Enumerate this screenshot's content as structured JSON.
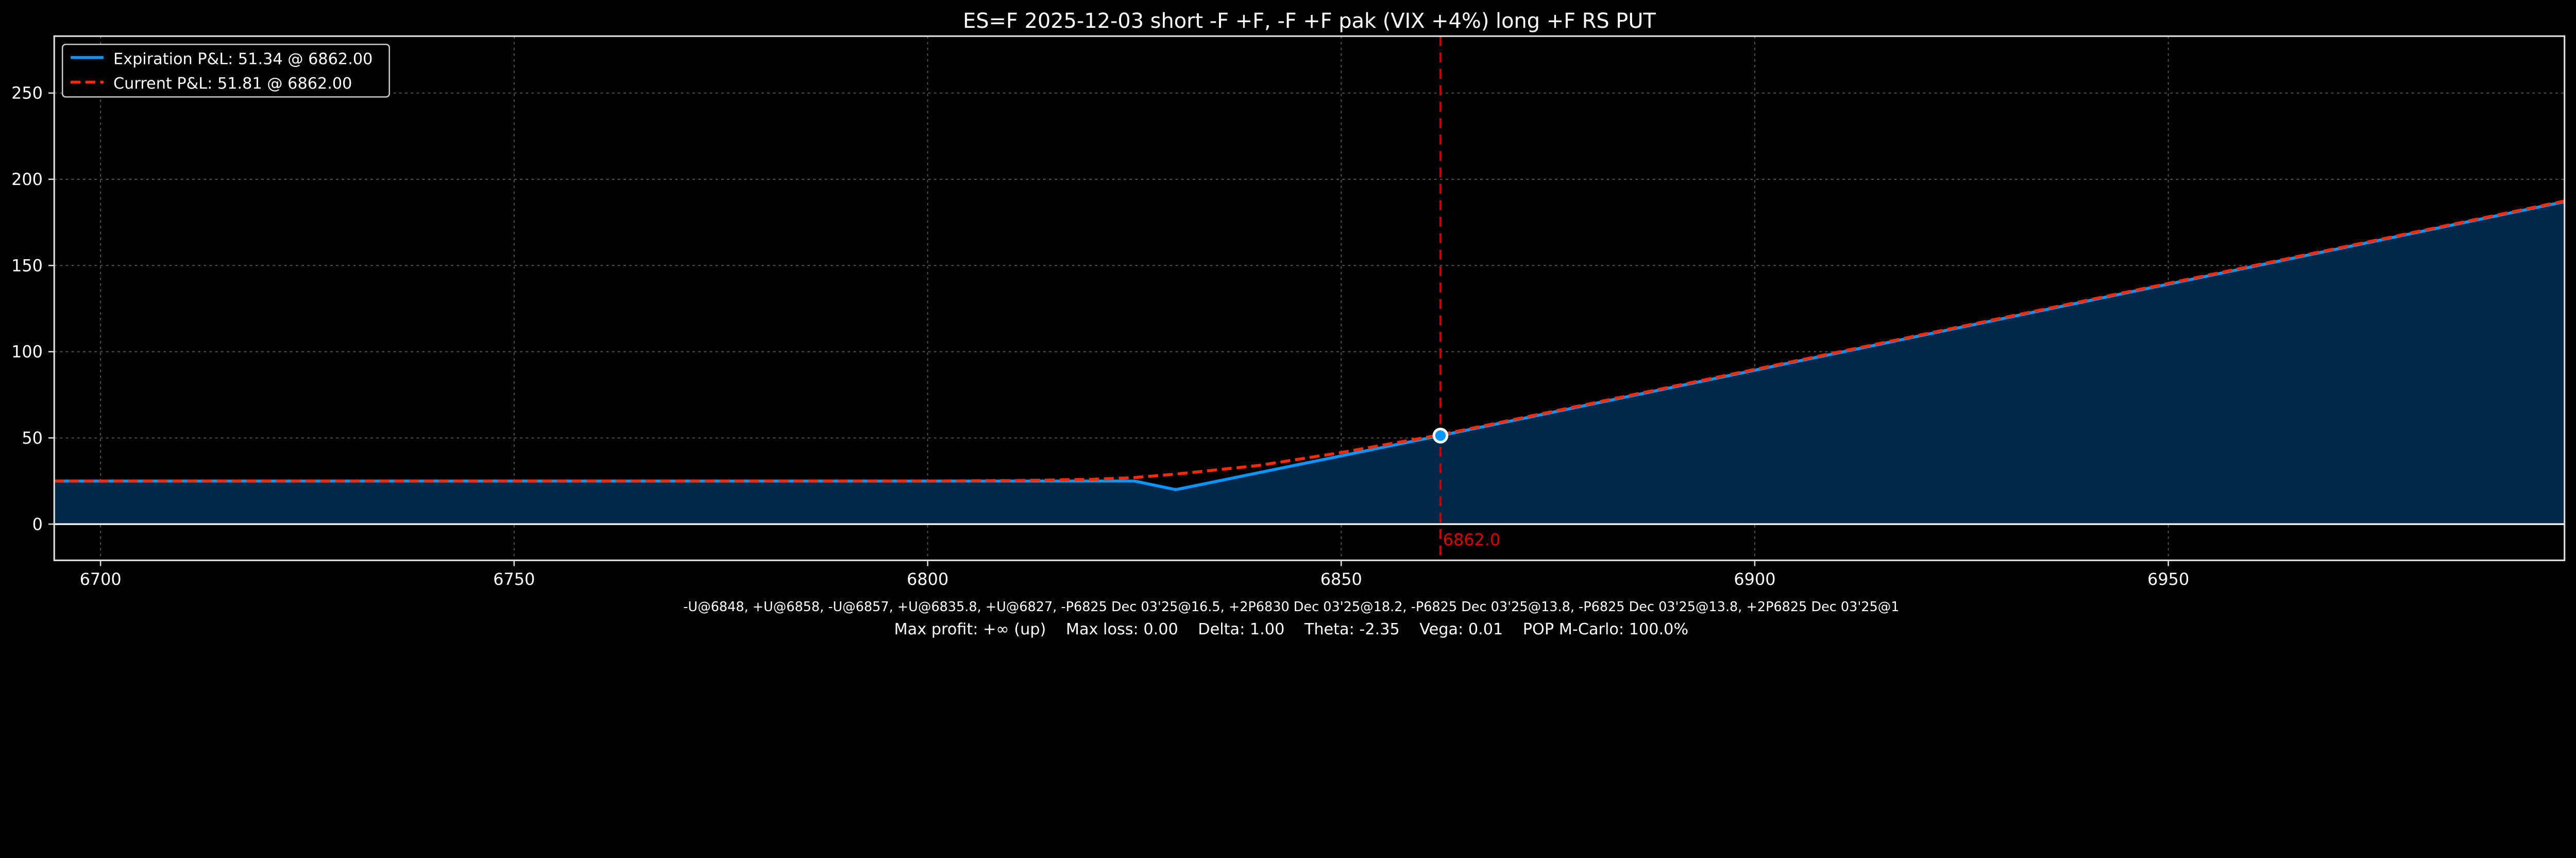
{
  "chart_data": {
    "type": "line",
    "title": "ES=F 2025-12-03 short -F +F, -F +F pak (VIX +4%) long +F RS PUT",
    "xlim": [
      6694.4,
      6997.9
    ],
    "ylim": [
      -21,
      283
    ],
    "x_ticks": [
      6700,
      6750,
      6800,
      6850,
      6900,
      6950
    ],
    "y_ticks": [
      0,
      50,
      100,
      150,
      200,
      250
    ],
    "grid": true,
    "legend_position": "top-left",
    "series": [
      {
        "name": "Expiration P&L: 51.34 @ 6862.00",
        "style": "solid",
        "color": "#0096ff",
        "filled": true,
        "fill_color": "#01294a",
        "x": [
          6694.4,
          6825,
          6830,
          6862,
          6997.9
        ],
        "y": [
          25,
          25,
          20,
          51.34,
          187
        ]
      },
      {
        "name": "Current P&L: 51.81 @ 6862.00",
        "style": "dashed",
        "color": "#ff2a00",
        "x": [
          6694.4,
          6800,
          6810,
          6820,
          6825,
          6830,
          6840,
          6850,
          6862,
          6997.9
        ],
        "y": [
          25,
          25,
          25.2,
          26,
          27,
          29,
          34,
          41.5,
          51.81,
          187.4
        ]
      }
    ],
    "marker": {
      "x": 6862,
      "y": 51.34
    },
    "vline": {
      "x": 6862.0,
      "label": "6862.0",
      "color": "#cc0000"
    }
  },
  "footer": {
    "legs": "-U@6848, +U@6858, -U@6857, +U@6835.8, +U@6827, -P6825 Dec 03'25@16.5, +2P6830 Dec 03'25@18.2, -P6825 Dec 03'25@13.8, -P6825 Dec 03'25@13.8, +2P6825 Dec 03'25@1",
    "stats": "Max profit: +∞ (up)    Max loss: 0.00    Delta: 1.00    Theta: -2.35    Vega: 0.01    POP M-Carlo: 100.0%"
  }
}
